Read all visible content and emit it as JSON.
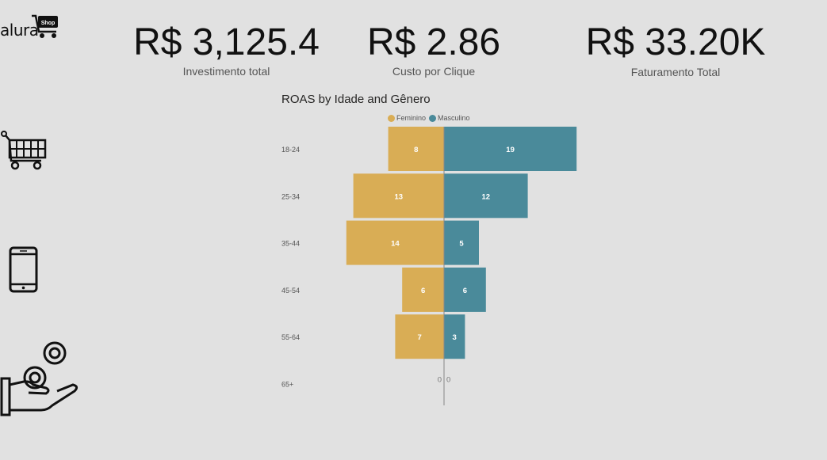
{
  "brand": {
    "name": "alura",
    "badge": "Shop"
  },
  "kpis": [
    {
      "value": "R$ 3,125.4",
      "label": "Investimento total"
    },
    {
      "value": "R$ 2.86",
      "label": "Custo por Clique"
    },
    {
      "value": "R$ 33.20K",
      "label": "Faturamento Total"
    }
  ],
  "side_icons": [
    "shopping-cart-icon",
    "smartphone-icon",
    "hand-with-coins-icon"
  ],
  "colors": {
    "feminino": "#d9ad55",
    "masculino": "#4a8a9a",
    "background": "#e1e1e1"
  },
  "chart_data": {
    "type": "bar",
    "orientation": "horizontal-diverging",
    "title": "ROAS by Idade and Gênero",
    "categories": [
      "18-24",
      "25-34",
      "35-44",
      "45-54",
      "55-64",
      "65+"
    ],
    "series": [
      {
        "name": "Feminino",
        "values": [
          8,
          13,
          14,
          6,
          7,
          0
        ]
      },
      {
        "name": "Masculino",
        "values": [
          19,
          12,
          5,
          6,
          3,
          0
        ]
      }
    ],
    "legend_position": "top-center"
  }
}
